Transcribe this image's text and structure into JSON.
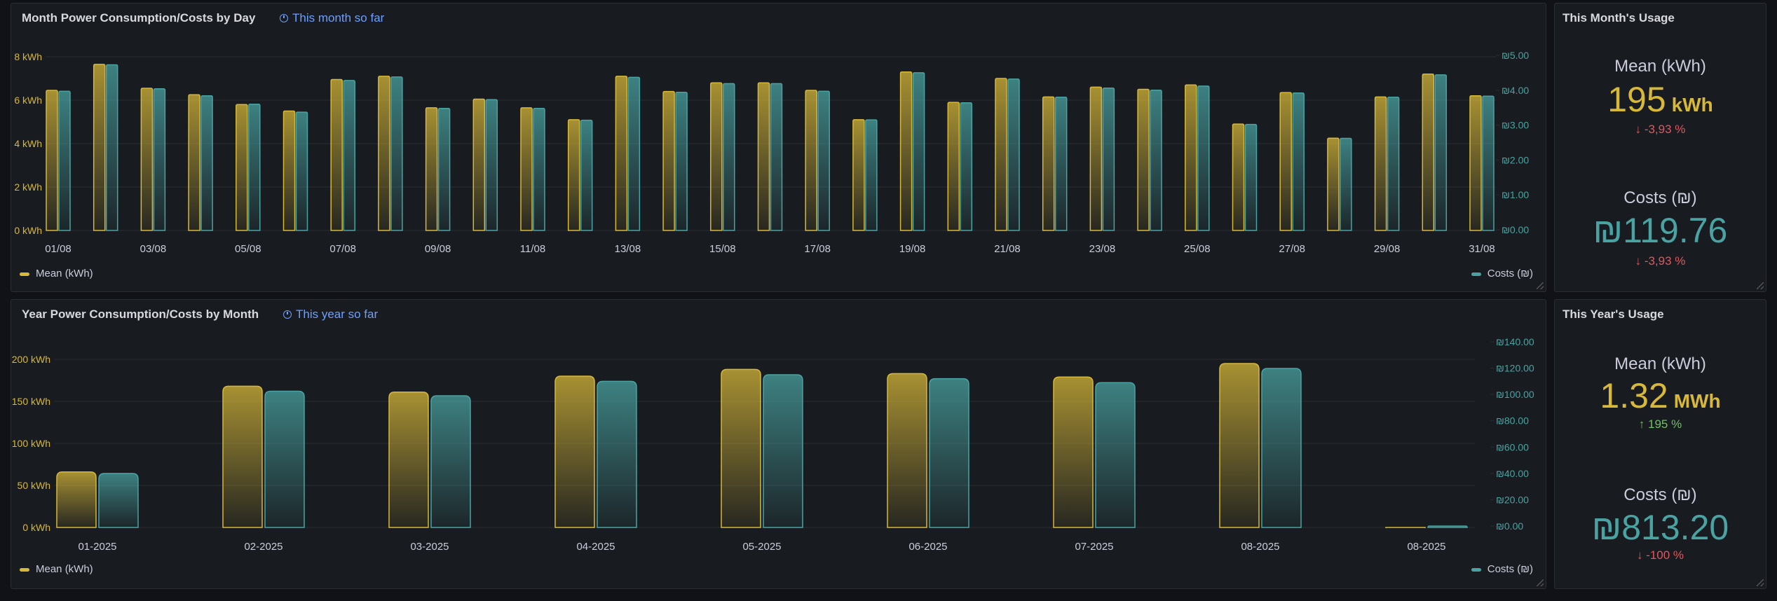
{
  "colors": {
    "mean": "#d7b839",
    "cost": "#4aa3a2",
    "down": "#e05760",
    "up": "#73bf69"
  },
  "month_panel": {
    "title": "Month Power Consumption/Costs by Day",
    "time_range": "This month so far",
    "legend_mean": "Mean (kWh)",
    "legend_cost": "Costs (₪)"
  },
  "year_panel": {
    "title": "Year Power Consumption/Costs by Month",
    "time_range": "This year so far",
    "legend_mean": "Mean (kWh)",
    "legend_cost": "Costs (₪)"
  },
  "month_stats": {
    "title": "This Month's Usage",
    "mean_label": "Mean (kWh)",
    "mean_value": "195",
    "mean_unit": "kWh",
    "mean_delta": "-3,93 %",
    "mean_dir": "down",
    "cost_label": "Costs (₪)",
    "cost_value": "₪119.76",
    "cost_delta": "-3,93 %",
    "cost_dir": "down"
  },
  "year_stats": {
    "title": "This Year's Usage",
    "mean_label": "Mean (kWh)",
    "mean_value": "1.32",
    "mean_unit": "MWh",
    "mean_delta": "195 %",
    "mean_dir": "up",
    "cost_label": "Costs (₪)",
    "cost_value": "₪813.20",
    "cost_delta": "-100 %",
    "cost_dir": "down"
  },
  "chart_data": [
    {
      "type": "bar",
      "title": "Month Power Consumption/Costs by Day",
      "categories": [
        "01/08",
        "02/08",
        "03/08",
        "04/08",
        "05/08",
        "06/08",
        "07/08",
        "08/08",
        "09/08",
        "10/08",
        "11/08",
        "12/08",
        "13/08",
        "14/08",
        "15/08",
        "16/08",
        "17/08",
        "18/08",
        "19/08",
        "20/08",
        "21/08",
        "22/08",
        "23/08",
        "24/08",
        "25/08",
        "26/08",
        "27/08",
        "28/08",
        "29/08",
        "30/08",
        "31/08"
      ],
      "tick_labels": [
        "01/08",
        "03/08",
        "05/08",
        "07/08",
        "09/08",
        "11/08",
        "13/08",
        "15/08",
        "17/08",
        "19/08",
        "21/08",
        "23/08",
        "25/08",
        "27/08",
        "29/08",
        "31/08"
      ],
      "series": [
        {
          "name": "Mean (kWh)",
          "axis": "left",
          "values": [
            6.45,
            7.65,
            6.55,
            6.25,
            5.8,
            5.5,
            6.95,
            7.1,
            5.65,
            6.05,
            5.65,
            5.1,
            7.1,
            6.4,
            6.8,
            6.8,
            6.45,
            5.1,
            7.3,
            5.9,
            7.0,
            6.15,
            6.6,
            6.5,
            6.7,
            4.9,
            6.35,
            4.25,
            6.15,
            7.2,
            6.2
          ]
        },
        {
          "name": "Costs (₪)",
          "axis": "right",
          "values": [
            3.97,
            4.73,
            4.04,
            3.84,
            3.6,
            3.37,
            4.28,
            4.38,
            3.48,
            3.73,
            3.48,
            3.14,
            4.37,
            3.94,
            4.19,
            4.19,
            3.97,
            3.15,
            4.5,
            3.64,
            4.32,
            3.8,
            4.06,
            4.0,
            4.12,
            3.02,
            3.92,
            2.62,
            3.8,
            4.44,
            3.83
          ]
        }
      ],
      "y_left": {
        "ticks": [
          "0 kWh",
          "2 kWh",
          "4 kWh",
          "6 kWh",
          "8 kWh"
        ],
        "range": [
          0,
          8
        ]
      },
      "y_right": {
        "ticks": [
          "₪0.00",
          "₪1.00",
          "₪2.00",
          "₪3.00",
          "₪4.00",
          "₪5.00"
        ],
        "range": [
          0,
          5
        ]
      }
    },
    {
      "type": "bar",
      "title": "Year Power Consumption/Costs by Month",
      "categories": [
        "01-2025",
        "02-2025",
        "03-2025",
        "04-2025",
        "05-2025",
        "06-2025",
        "07-2025",
        "08-2025",
        "08-2025"
      ],
      "tick_labels": [
        "01-2025",
        "02-2025",
        "03-2025",
        "04-2025",
        "05-2025",
        "06-2025",
        "07-2025",
        "08-2025",
        "08-2025"
      ],
      "series": [
        {
          "name": "Mean (kWh)",
          "axis": "left",
          "values": [
            66,
            168,
            161,
            180,
            188,
            183,
            179,
            195,
            0
          ]
        },
        {
          "name": "Costs (₪)",
          "axis": "right",
          "values": [
            40,
            102.5,
            99,
            110,
            115,
            112,
            109,
            119.76,
            0
          ]
        }
      ],
      "y_left": {
        "ticks": [
          "0 kWh",
          "50 kWh",
          "100 kWh",
          "150 kWh",
          "200 kWh"
        ],
        "range": [
          0,
          200
        ]
      },
      "y_right": {
        "ticks": [
          "₪0.00",
          "₪20.00",
          "₪40.00",
          "₪60.00",
          "₪80.00",
          "₪100.00",
          "₪120.00",
          "₪140.00"
        ],
        "range": [
          0,
          140
        ]
      }
    }
  ]
}
